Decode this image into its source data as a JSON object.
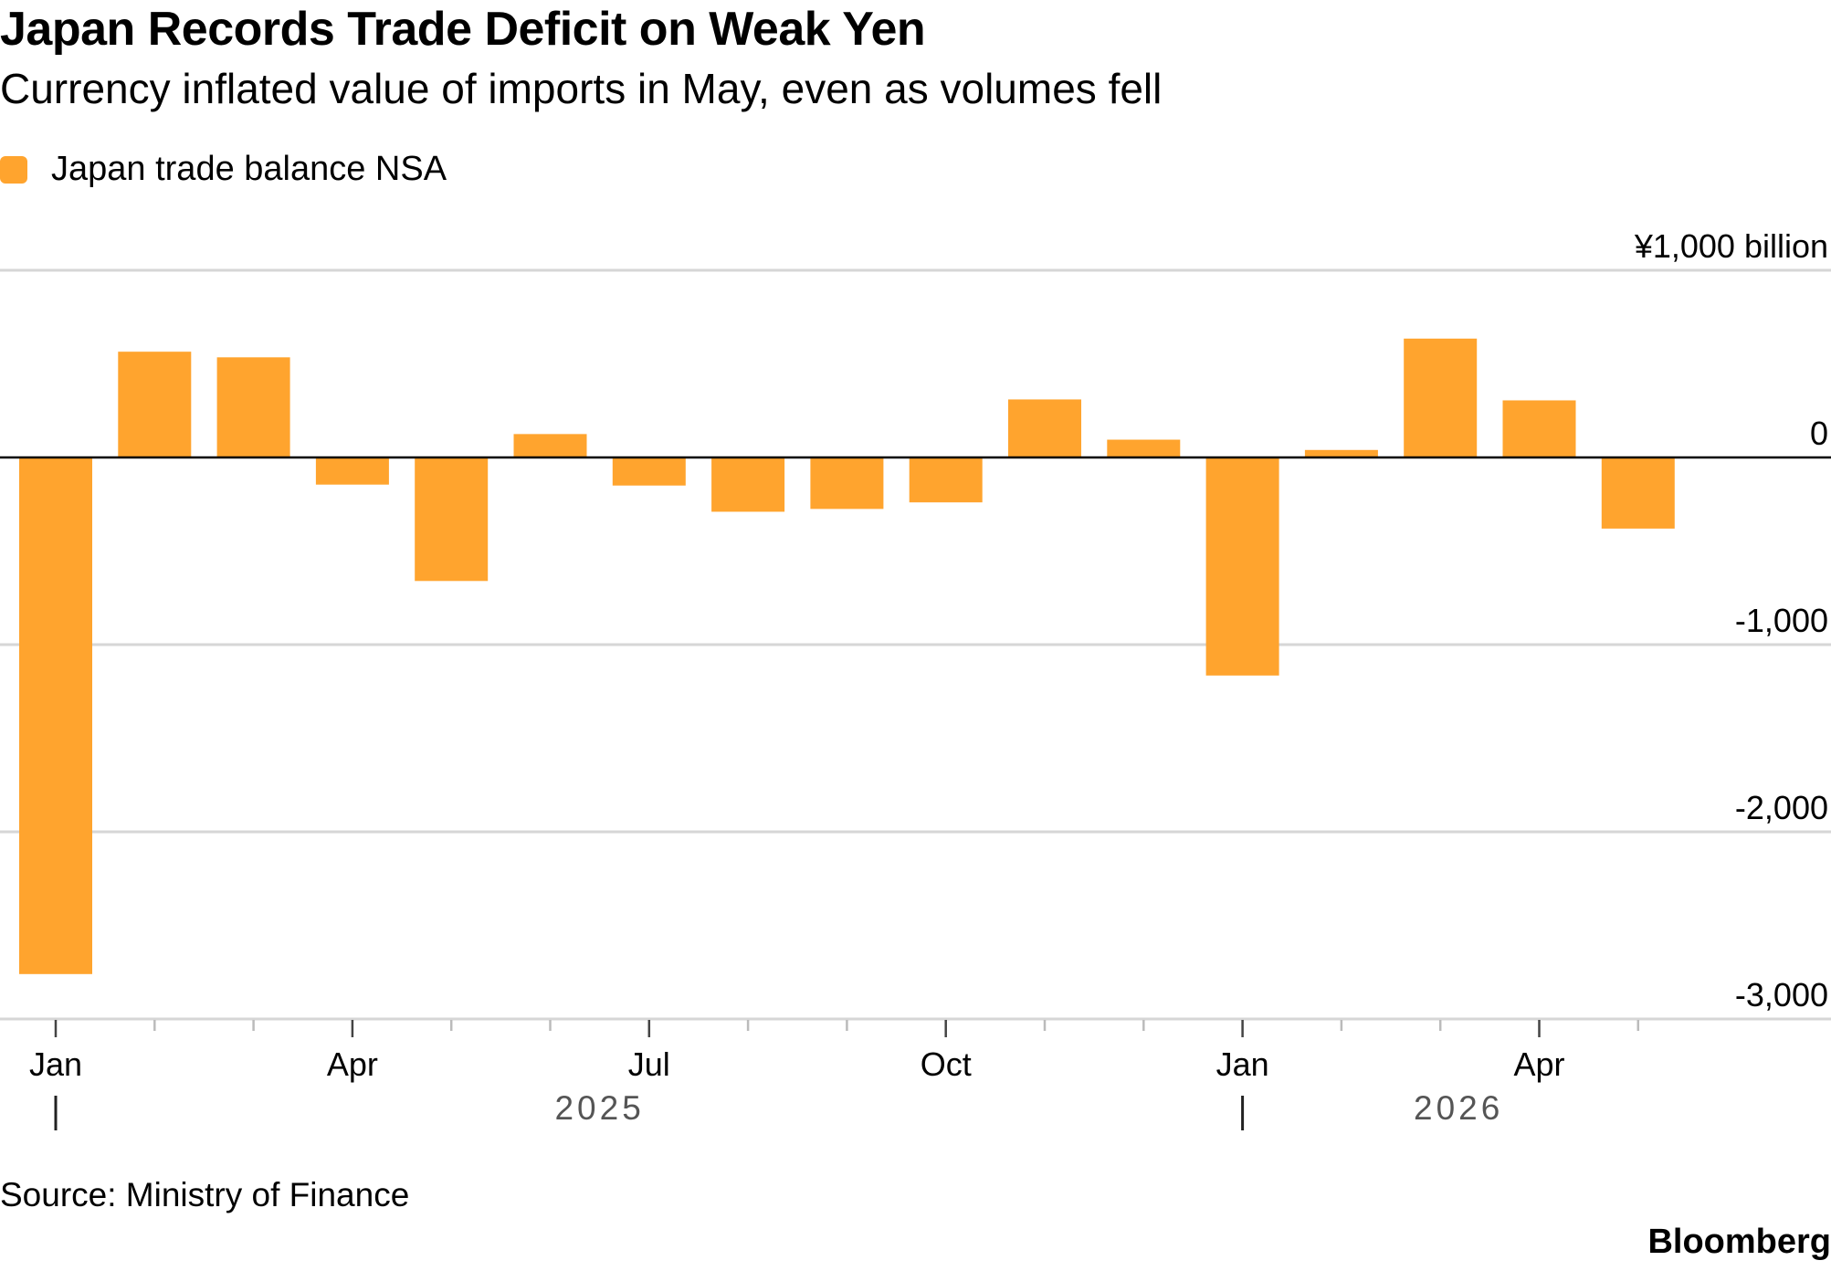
{
  "title": "Japan Records Trade Deficit on Weak Yen",
  "subtitle": "Currency inflated value of imports in May, even as volumes fell",
  "legend": {
    "label": "Japan trade balance NSA",
    "color": "#ffa42e"
  },
  "source": "Source: Ministry of Finance",
  "brand": "Bloomberg",
  "colors": {
    "bar": "#ffa42e",
    "grid": "#d6d6d6",
    "zero_line": "#000000",
    "year_label": "#555555"
  },
  "chart_data": {
    "type": "bar",
    "categories": [
      "Jan 2025",
      "Feb 2025",
      "Mar 2025",
      "Apr 2025",
      "May 2025",
      "Jun 2025",
      "Jul 2025",
      "Aug 2025",
      "Sep 2025",
      "Oct 2025",
      "Nov 2025",
      "Dec 2025",
      "Jan 2026",
      "Feb 2026",
      "Mar 2026",
      "Apr 2026",
      "May 2026"
    ],
    "values": [
      -2760,
      565,
      535,
      -145,
      -660,
      125,
      -150,
      -290,
      -275,
      -240,
      310,
      95,
      -1165,
      40,
      635,
      305,
      -380
    ],
    "ylim": [
      -3000,
      1000
    ],
    "yticks": [
      1000,
      0,
      -1000,
      -2000,
      -3000
    ],
    "ytick_labels": [
      "¥1,000 billion",
      "0",
      "-1,000",
      "-2,000",
      "-3,000"
    ],
    "xtick_labels": [
      {
        "index": 0,
        "label": "Jan"
      },
      {
        "index": 3,
        "label": "Apr"
      },
      {
        "index": 6,
        "label": "Jul"
      },
      {
        "index": 9,
        "label": "Oct"
      },
      {
        "index": 12,
        "label": "Jan"
      },
      {
        "index": 15,
        "label": "Apr"
      }
    ],
    "year_labels": [
      {
        "label": "2025",
        "start_index": 0
      },
      {
        "label": "2026",
        "start_index": 12
      }
    ],
    "grid": true,
    "xlabel": "",
    "ylabel": ""
  }
}
